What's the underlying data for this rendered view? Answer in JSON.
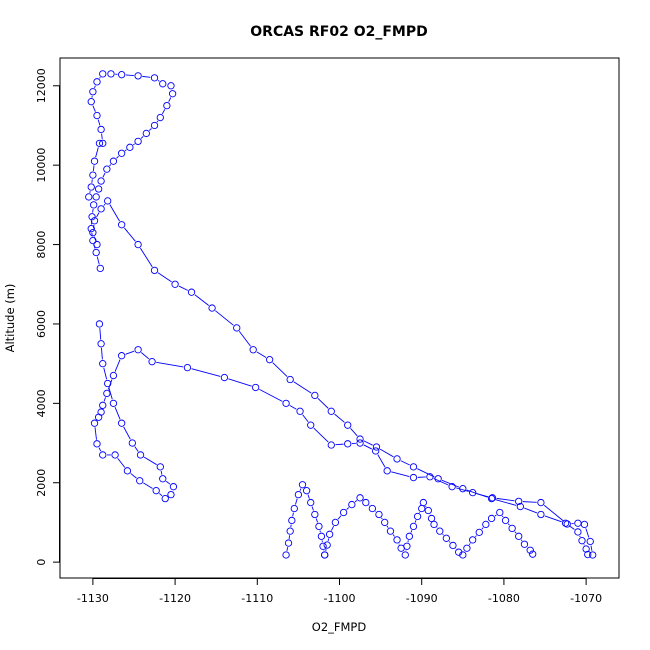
{
  "chart_data": {
    "type": "scatter",
    "title": "ORCAS RF02 O2_FMPD",
    "xlabel": "O2_FMPD",
    "ylabel": "Altitude (m)",
    "xlim": [
      -1134,
      -1066
    ],
    "ylim": [
      -400,
      12700
    ],
    "xticks": [
      -1130,
      -1120,
      -1110,
      -1100,
      -1090,
      -1080,
      -1070
    ],
    "yticks": [
      0,
      2000,
      4000,
      6000,
      8000,
      10000,
      12000
    ],
    "colors": {
      "series": "#0000ff",
      "axis": "#000000"
    },
    "markers": "open-circle",
    "lines": true,
    "grid": false,
    "series": [
      {
        "x": [
          -1069.2,
          -1069.5,
          -1070.2,
          -1071.0,
          -1072.3,
          -1075.5,
          -1078.2,
          -1081.4,
          -1083.8,
          -1086.3,
          -1089.0,
          -1091.0,
          -1094.2,
          -1095.6,
          -1097.5,
          -1099.0,
          -1101.0,
          -1103.5,
          -1104.8,
          -1106.5,
          -1110.2,
          -1114.0,
          -1118.5,
          -1122.8,
          -1124.5,
          -1126.5,
          -1127.5,
          -1128.3,
          -1128.8,
          -1129.0,
          -1129.3,
          -1129.8,
          -1129.5,
          -1128.8,
          -1127.3,
          -1125.8,
          -1124.3,
          -1122.3,
          -1121.2,
          -1120.5,
          -1120.2,
          -1121.5,
          -1121.8,
          -1124.2,
          -1125.2,
          -1126.5,
          -1127.5,
          -1128.2,
          -1128.8,
          -1129.0,
          -1129.2
        ],
        "y": [
          180,
          520,
          950,
          980,
          960,
          1500,
          1530,
          1620,
          1750,
          1900,
          2150,
          2130,
          2300,
          2800,
          3000,
          2980,
          2950,
          3450,
          3800,
          4000,
          4400,
          4650,
          4900,
          5050,
          5350,
          5200,
          4700,
          4250,
          3950,
          3780,
          3650,
          3500,
          2980,
          2700,
          2700,
          2300,
          2050,
          1800,
          1600,
          1700,
          1900,
          2100,
          2400,
          2700,
          3000,
          3500,
          4000,
          4500,
          5000,
          5500,
          6000
        ]
      },
      {
        "x": [
          -1129.5,
          -1130.0,
          -1129.8,
          -1129.0,
          -1128.2,
          -1126.5,
          -1124.5,
          -1122.5,
          -1120.0,
          -1118.0,
          -1115.5,
          -1112.5,
          -1110.5,
          -1108.5,
          -1106.0,
          -1103.0,
          -1101.0,
          -1099.0,
          -1097.5,
          -1095.5,
          -1093.0,
          -1091.0,
          -1088.0,
          -1085.0,
          -1081.5,
          -1078.0,
          -1075.5,
          -1072.5,
          -1071.0,
          -1070.5,
          -1070.0,
          -1069.8
        ],
        "y": [
          8000,
          8300,
          8600,
          8900,
          9100,
          8500,
          8000,
          7350,
          7000,
          6800,
          6400,
          5900,
          5350,
          5100,
          4600,
          4200,
          3800,
          3450,
          3100,
          2900,
          2600,
          2400,
          2100,
          1850,
          1600,
          1400,
          1200,
          980,
          760,
          540,
          330,
          190
        ]
      },
      {
        "x": [
          -1101.8,
          -1101.5,
          -1101.2,
          -1100.5,
          -1099.5,
          -1098.5,
          -1097.5,
          -1096.8,
          -1096.0,
          -1095.2,
          -1094.5,
          -1093.8,
          -1093.0,
          -1092.5,
          -1092.0,
          -1091.8,
          -1091.5,
          -1091.0,
          -1090.5,
          -1090.0,
          -1089.8,
          -1089.2,
          -1088.8,
          -1088.5,
          -1087.8,
          -1087.0,
          -1086.2,
          -1085.5,
          -1085.0,
          -1084.5,
          -1083.8,
          -1083.0,
          -1082.2,
          -1081.5,
          -1080.5,
          -1079.8,
          -1079.0,
          -1078.2,
          -1077.5,
          -1076.8,
          -1076.5
        ],
        "y": [
          180,
          430,
          700,
          1000,
          1250,
          1450,
          1620,
          1500,
          1350,
          1200,
          1000,
          780,
          560,
          350,
          180,
          400,
          650,
          900,
          1150,
          1350,
          1500,
          1300,
          1100,
          950,
          780,
          600,
          420,
          250,
          180,
          350,
          560,
          750,
          950,
          1100,
          1250,
          1050,
          850,
          650,
          450,
          300,
          200
        ]
      },
      {
        "x": [
          -1106.5,
          -1106.2,
          -1106.0,
          -1105.8,
          -1105.5,
          -1105.0,
          -1104.5,
          -1104.0,
          -1103.5,
          -1103.0,
          -1102.5,
          -1102.2,
          -1102.0,
          -1101.8
        ],
        "y": [
          180,
          480,
          780,
          1050,
          1350,
          1700,
          1950,
          1800,
          1500,
          1200,
          900,
          650,
          400,
          180
        ]
      },
      {
        "x": [
          -1130.5,
          -1130.2,
          -1130.0,
          -1129.8,
          -1129.2,
          -1128.8,
          -1129.0,
          -1129.5,
          -1130.2,
          -1130.0,
          -1129.5,
          -1128.8,
          -1127.8,
          -1126.5,
          -1124.5,
          -1122.5,
          -1121.5,
          -1120.5,
          -1120.3,
          -1121.0,
          -1121.8,
          -1122.5,
          -1123.5,
          -1124.5,
          -1125.5,
          -1126.5,
          -1127.5,
          -1128.3,
          -1129.0,
          -1129.3,
          -1129.6,
          -1129.9,
          -1130.1,
          -1130.2,
          -1130.0,
          -1129.6,
          -1129.1
        ],
        "y": [
          9200,
          9450,
          9750,
          10100,
          10550,
          10550,
          10900,
          11250,
          11600,
          11850,
          12100,
          12300,
          12300,
          12280,
          12250,
          12200,
          12050,
          12000,
          11800,
          11500,
          11200,
          11000,
          10800,
          10600,
          10450,
          10300,
          10100,
          9900,
          9600,
          9400,
          9200,
          9000,
          8700,
          8400,
          8100,
          7800,
          7400
        ]
      }
    ]
  }
}
